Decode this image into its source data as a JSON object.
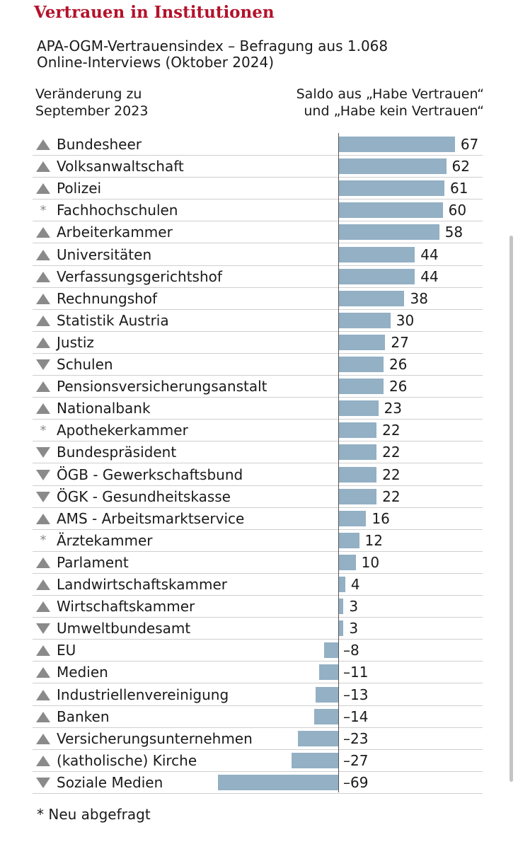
{
  "title": "Vertrauen in Institutionen",
  "subtitle": "APA-OGM-Vertrauensindex – Befragung aus 1.068\nOnline-Interviews (Oktober 2024)",
  "header_left": "Veränderung zu\nSeptember 2023",
  "header_right": "Saldo aus „Habe Vertrauen“\nund „Habe kein Vertrauen“",
  "footnote": "* Neu abgefragt",
  "colors": {
    "title": "#b3122b",
    "bar": "#93b0c4",
    "marker": "#8a8a8a"
  },
  "chart_data": {
    "type": "bar",
    "orientation": "horizontal",
    "categories": [
      "Bundesheer",
      "Volksanwaltschaft",
      "Polizei",
      "Fachhochschulen",
      "Arbeiterkammer",
      "Universitäten",
      "Verfassungsgerichtshof",
      "Rechnungshof",
      "Statistik Austria",
      "Justiz",
      "Schulen",
      "Pensionsversicherungsanstalt",
      "Nationalbank",
      "Apothekerkammer",
      "Bundespräsident",
      "ÖGB - Gewerkschaftsbund",
      "ÖGK - Gesundheitskasse",
      "AMS - Arbeitsmarktservice",
      "Ärztekammer",
      "Parlament",
      "Landwirtschaftskammer",
      "Wirtschaftskammer",
      "Umweltbundesamt",
      "EU",
      "Medien",
      "Industriellenvereinigung",
      "Banken",
      "Versicherungsunternehmen",
      "(katholische) Kirche",
      "Soziale Medien"
    ],
    "values": [
      67,
      62,
      61,
      60,
      58,
      44,
      44,
      38,
      30,
      27,
      26,
      26,
      23,
      22,
      22,
      22,
      22,
      16,
      12,
      10,
      4,
      3,
      3,
      -8,
      -11,
      -13,
      -14,
      -23,
      -27,
      -69
    ],
    "value_labels": [
      "67",
      "62",
      "61",
      "60",
      "58",
      "44",
      "44",
      "38",
      "30",
      "27",
      "26",
      "26",
      "23",
      "22",
      "22",
      "22",
      "22",
      "16",
      "12",
      "10",
      "4",
      "3",
      "3",
      "–8",
      "–11",
      "–13",
      "–14",
      "–23",
      "–27",
      "–69"
    ],
    "change": [
      "up",
      "up",
      "up",
      "new",
      "up",
      "up",
      "up",
      "up",
      "up",
      "up",
      "down",
      "up",
      "up",
      "new",
      "down",
      "down",
      "down",
      "up",
      "new",
      "up",
      "up",
      "up",
      "down",
      "up",
      "up",
      "up",
      "up",
      "up",
      "up",
      "down"
    ],
    "xlim": [
      -69,
      67
    ],
    "grid": false,
    "legend": "none"
  }
}
